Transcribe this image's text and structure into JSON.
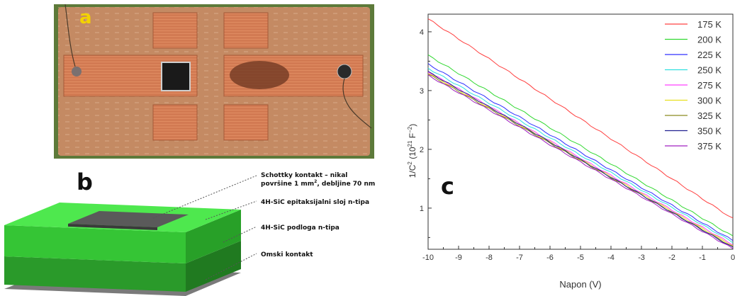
{
  "panels": {
    "a": {
      "label": "a"
    },
    "b": {
      "label": "b",
      "annotations": [
        {
          "line1": "Schottky kontakt – nikal",
          "line2a": "površine 1 mm",
          "sup": "2",
          "line2b": ", debljine 70 nm"
        },
        {
          "text": "4H-SiC epitaksijalni sloj n-tipa"
        },
        {
          "text": "4H-SiC podloga n-tipa"
        },
        {
          "text": "Omski kontakt"
        }
      ],
      "colors": {
        "nickel": "#5a5a5a",
        "epi_top": "#4ee84e",
        "epi_front": "#32c832",
        "sub_front": "#2a9a2a",
        "ohmic": "#666666"
      }
    },
    "c": {
      "label": "c"
    }
  },
  "chart_data": {
    "type": "line",
    "title": "",
    "xlabel": "Napon (V)",
    "ylabel_main": "1/C",
    "ylabel_sup1": "2",
    "ylabel_mid": " (10",
    "ylabel_sup2": "21",
    "ylabel_unit": " F",
    "ylabel_sup3": "−2",
    "ylabel_end": ")",
    "xlim": [
      -10,
      0
    ],
    "ylim": [
      0.3,
      4.3
    ],
    "xticks": [
      "-10",
      "-9",
      "-8",
      "-7",
      "-6",
      "-5",
      "-4",
      "-3",
      "-2",
      "-1",
      "0"
    ],
    "yticks": [
      "1",
      "2",
      "3",
      "4"
    ],
    "legend_position": "top-right",
    "grid": false,
    "series": [
      {
        "name": "175 K",
        "color": "#ff4040",
        "x": [
          -10,
          0
        ],
        "y": [
          4.22,
          0.82
        ]
      },
      {
        "name": "200 K",
        "color": "#30d830",
        "x": [
          -10,
          0
        ],
        "y": [
          3.6,
          0.52
        ]
      },
      {
        "name": "225 K",
        "color": "#3030ff",
        "x": [
          -10,
          0
        ],
        "y": [
          3.45,
          0.45
        ]
      },
      {
        "name": "250 K",
        "color": "#30e0e0",
        "x": [
          -10,
          0
        ],
        "y": [
          3.38,
          0.42
        ]
      },
      {
        "name": "275 K",
        "color": "#ff40ff",
        "x": [
          -10,
          0
        ],
        "y": [
          3.32,
          0.38
        ]
      },
      {
        "name": "300 K",
        "color": "#e8e020",
        "x": [
          -10,
          0
        ],
        "y": [
          3.3,
          0.36
        ]
      },
      {
        "name": "325 K",
        "color": "#8a8a20",
        "x": [
          -10,
          0
        ],
        "y": [
          3.28,
          0.34
        ]
      },
      {
        "name": "350 K",
        "color": "#202090",
        "x": [
          -10,
          0
        ],
        "y": [
          3.32,
          0.33
        ]
      },
      {
        "name": "375 K",
        "color": "#a020c0",
        "x": [
          -10,
          0
        ],
        "y": [
          3.26,
          0.31
        ]
      }
    ]
  }
}
